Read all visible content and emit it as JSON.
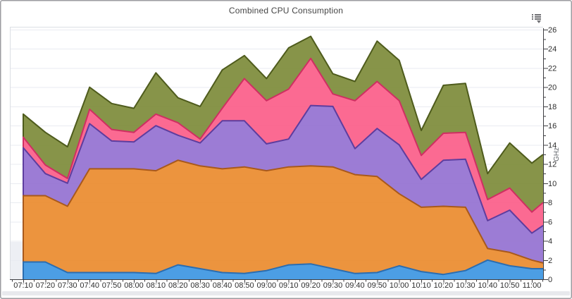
{
  "window": {
    "title": "Combined CPU Consumption",
    "icons": {
      "menu": "list-with-caret-down"
    }
  },
  "chart_data": {
    "type": "area",
    "stacked": true,
    "title": "Combined CPU Consumption",
    "xlabel": "",
    "ylabel": "GHz",
    "ylim": [
      0,
      26
    ],
    "y_major_step": 2,
    "y_minor_step": 1,
    "x_minor_interval_minutes": 5,
    "grid": "horizontal",
    "legend": "none",
    "categories": [
      "07:10",
      "07:20",
      "07:30",
      "07:40",
      "07:50",
      "08:00",
      "08:10",
      "08:20",
      "08:30",
      "08:40",
      "08:50",
      "09:00",
      "09:10",
      "09:20",
      "09:30",
      "09:40",
      "09:50",
      "10:00",
      "10:10",
      "10:20",
      "10:30",
      "10:40",
      "10:50",
      "11:00"
    ],
    "series": [
      {
        "name": "blue",
        "color": "#3E97E2",
        "border": "#2B6DB0",
        "values": [
          1.8,
          1.8,
          0.7,
          0.7,
          0.7,
          0.7,
          0.6,
          1.5,
          1.1,
          0.7,
          0.6,
          0.9,
          1.5,
          1.6,
          1.1,
          0.6,
          0.7,
          1.4,
          0.8,
          0.5,
          0.9,
          2.0,
          1.4,
          1.1
        ],
        "edge_value": 1.1
      },
      {
        "name": "orange",
        "color": "#EB8C2F",
        "border": "#A8591C",
        "values": [
          6.9,
          6.9,
          6.9,
          10.8,
          10.8,
          10.8,
          10.7,
          10.9,
          10.7,
          10.8,
          11.1,
          10.4,
          10.2,
          10.2,
          10.6,
          10.3,
          10.0,
          7.5,
          6.7,
          7.1,
          6.6,
          1.2,
          1.4,
          0.9
        ],
        "edge_value": 0.6
      },
      {
        "name": "purple",
        "color": "#9572D2",
        "border": "#5E3D9E",
        "values": [
          5.0,
          2.3,
          2.4,
          4.7,
          2.9,
          2.8,
          4.7,
          2.6,
          2.4,
          5.0,
          4.8,
          2.8,
          2.9,
          6.3,
          6.3,
          2.7,
          5.0,
          5.1,
          2.9,
          4.8,
          5.0,
          2.9,
          4.4,
          2.8
        ],
        "edge_value": 3.9
      },
      {
        "name": "pink",
        "color": "#FB5F8A",
        "border": "#CE2F62",
        "values": [
          1.1,
          0.9,
          0.5,
          1.5,
          1.2,
          1.0,
          1.2,
          1.3,
          0.4,
          1.3,
          4.4,
          4.5,
          5.2,
          4.9,
          1.3,
          5.0,
          4.9,
          4.6,
          2.5,
          2.8,
          2.8,
          2.2,
          2.3,
          2.2
        ],
        "edge_value": 2.4
      },
      {
        "name": "olive",
        "color": "#7E8C3B",
        "border": "#4E5B1C",
        "values": [
          2.4,
          3.4,
          3.3,
          2.3,
          2.7,
          2.5,
          4.3,
          2.6,
          3.4,
          4.0,
          2.4,
          2.3,
          4.3,
          2.3,
          2.1,
          2.0,
          4.2,
          4.2,
          2.6,
          5.0,
          5.1,
          2.7,
          4.7,
          5.1
        ],
        "edge_value": 5.0
      }
    ]
  }
}
